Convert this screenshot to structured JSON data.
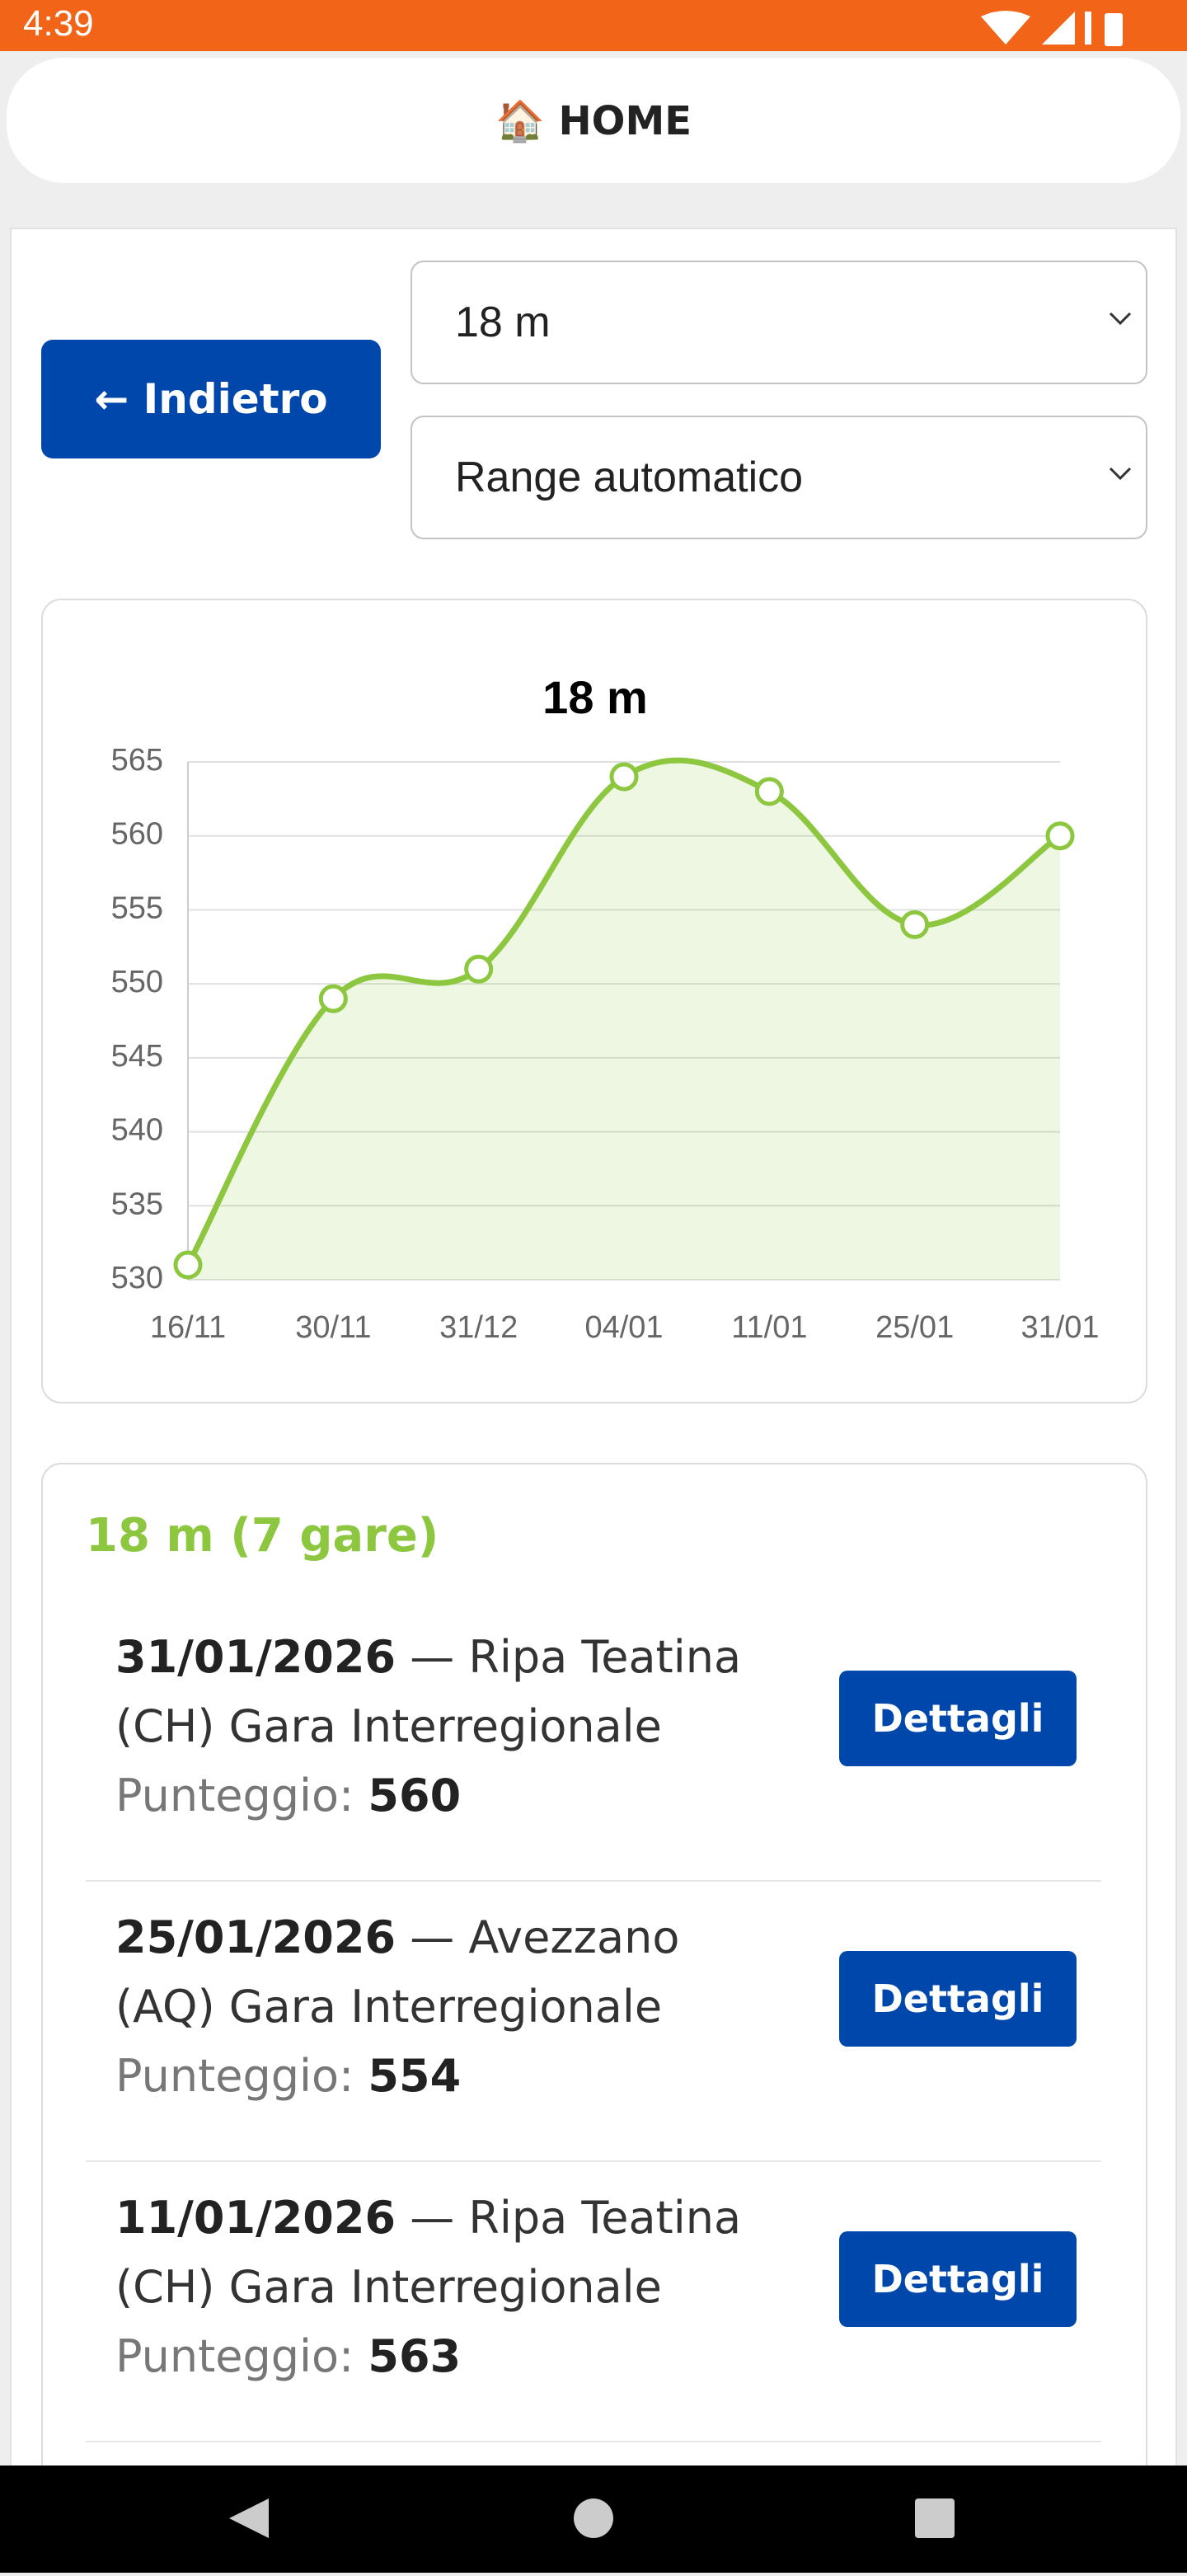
{
  "status_bar": {
    "time": "4:39"
  },
  "header": {
    "title": "🏠 HOME"
  },
  "controls": {
    "back_button": "← Indietro",
    "distance_select": "18 m",
    "range_select": "Range automatico"
  },
  "chart_data": {
    "type": "line",
    "title": "18 m",
    "categories": [
      "16/11",
      "30/11",
      "31/12",
      "04/01",
      "11/01",
      "25/01",
      "31/01"
    ],
    "values": [
      531,
      549,
      551,
      564,
      563,
      554,
      560
    ],
    "color": "#8dc63f",
    "area": true,
    "ylim": [
      530,
      565
    ],
    "yticks": [
      530,
      535,
      540,
      545,
      550,
      555,
      560,
      565
    ],
    "grid": true
  },
  "list": {
    "title": "18 m (7 gare)",
    "items": [
      {
        "date": "31/01/2026",
        "place": "— Ripa Teatina (CH) Gara Interregionale",
        "score_label": "Punteggio:",
        "score": 560,
        "button": "Dettagli"
      },
      {
        "date": "25/01/2026",
        "place": "— Avezzano (AQ) Gara Interregionale",
        "score_label": "Punteggio:",
        "score": 554,
        "button": "Dettagli"
      },
      {
        "date": "11/01/2026",
        "place": "— Ripa Teatina (CH) Gara Interregionale",
        "score_label": "Punteggio:",
        "score": 563,
        "button": "Dettagli"
      }
    ]
  }
}
